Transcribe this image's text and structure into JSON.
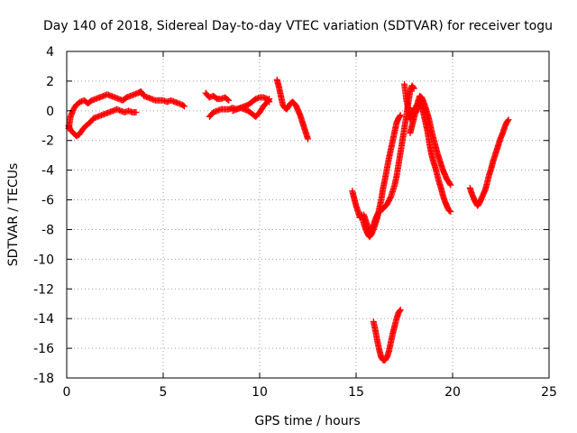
{
  "chart_data": {
    "type": "scatter",
    "title": "Day 140 of 2018, Sidereal Day-to-day VTEC variation (SDTVAR) for receiver togu",
    "xlabel": "GPS time / hours",
    "ylabel": "SDTVAR / TECUs",
    "xlim": [
      0,
      25
    ],
    "ylim": [
      -18,
      4
    ],
    "x_ticks": [
      0,
      5,
      10,
      15,
      20,
      25
    ],
    "y_ticks": [
      -18,
      -16,
      -14,
      -12,
      -10,
      -8,
      -6,
      -4,
      -2,
      0,
      2,
      4
    ],
    "grid": true,
    "marker": "+",
    "color": "#ff0000",
    "series": [
      {
        "segments": [
          [
            [
              0.1,
              -1.0
            ],
            [
              0.2,
              -1.3
            ],
            [
              0.35,
              -1.5
            ],
            [
              0.5,
              -1.7
            ],
            [
              0.65,
              -1.6
            ],
            [
              0.8,
              -1.3
            ],
            [
              1.0,
              -1.0
            ],
            [
              1.2,
              -0.8
            ],
            [
              1.4,
              -0.5
            ],
            [
              1.6,
              -0.4
            ],
            [
              1.8,
              -0.3
            ],
            [
              2.0,
              -0.2
            ],
            [
              2.2,
              -0.1
            ],
            [
              2.4,
              0.0
            ],
            [
              2.6,
              0.1
            ],
            [
              2.8,
              0.0
            ],
            [
              3.0,
              -0.1
            ],
            [
              3.2,
              0.0
            ],
            [
              3.4,
              -0.1
            ],
            [
              3.6,
              -0.1
            ]
          ],
          [
            [
              0.1,
              -1.2
            ],
            [
              0.2,
              -0.4
            ],
            [
              0.35,
              0.1
            ],
            [
              0.5,
              0.4
            ],
            [
              0.7,
              0.6
            ],
            [
              0.9,
              0.7
            ],
            [
              1.1,
              0.5
            ],
            [
              1.3,
              0.7
            ],
            [
              1.5,
              0.8
            ],
            [
              1.7,
              0.9
            ],
            [
              1.9,
              1.0
            ],
            [
              2.1,
              1.1
            ],
            [
              2.3,
              1.0
            ],
            [
              2.5,
              0.9
            ],
            [
              2.7,
              0.8
            ],
            [
              2.9,
              0.7
            ],
            [
              3.1,
              0.9
            ],
            [
              3.3,
              1.0
            ],
            [
              3.5,
              1.1
            ],
            [
              3.7,
              1.2
            ],
            [
              3.85,
              1.3
            ],
            [
              4.0,
              1.0
            ],
            [
              4.2,
              0.9
            ],
            [
              4.4,
              0.8
            ],
            [
              4.6,
              0.7
            ],
            [
              4.8,
              0.7
            ],
            [
              5.0,
              0.7
            ],
            [
              5.2,
              0.6
            ],
            [
              5.4,
              0.7
            ],
            [
              5.6,
              0.6
            ],
            [
              5.8,
              0.5
            ],
            [
              6.0,
              0.4
            ],
            [
              6.1,
              0.3
            ]
          ],
          [
            [
              7.2,
              1.2
            ],
            [
              7.4,
              0.9
            ],
            [
              7.6,
              1.0
            ],
            [
              7.8,
              0.8
            ],
            [
              8.0,
              0.8
            ],
            [
              8.2,
              0.9
            ],
            [
              8.4,
              0.7
            ]
          ],
          [
            [
              7.4,
              -0.4
            ],
            [
              7.6,
              -0.1
            ],
            [
              7.8,
              0.0
            ],
            [
              8.0,
              0.1
            ],
            [
              8.2,
              0.1
            ],
            [
              8.4,
              0.1
            ],
            [
              8.6,
              0.2
            ],
            [
              8.8,
              0.1
            ],
            [
              9.0,
              0.2
            ],
            [
              9.2,
              0.3
            ],
            [
              9.4,
              0.4
            ],
            [
              9.6,
              0.6
            ],
            [
              9.8,
              0.8
            ],
            [
              10.0,
              0.9
            ],
            [
              10.2,
              0.9
            ],
            [
              10.4,
              0.8
            ],
            [
              10.5,
              0.6
            ]
          ],
          [
            [
              8.6,
              0.0
            ],
            [
              8.8,
              0.1
            ],
            [
              9.0,
              0.2
            ],
            [
              9.2,
              0.1
            ],
            [
              9.4,
              0.0
            ],
            [
              9.6,
              -0.2
            ],
            [
              9.8,
              -0.4
            ],
            [
              10.0,
              -0.1
            ],
            [
              10.2,
              0.3
            ],
            [
              10.4,
              0.6
            ],
            [
              10.5,
              0.8
            ]
          ],
          [
            [
              10.9,
              2.1
            ],
            [
              11.0,
              1.6
            ],
            [
              11.1,
              1.0
            ],
            [
              11.2,
              0.4
            ],
            [
              11.3,
              0.2
            ],
            [
              11.4,
              0.1
            ],
            [
              11.5,
              0.3
            ],
            [
              11.6,
              0.5
            ],
            [
              11.7,
              0.6
            ],
            [
              11.8,
              0.5
            ],
            [
              11.9,
              0.3
            ],
            [
              12.0,
              0.0
            ],
            [
              12.1,
              -0.3
            ],
            [
              12.2,
              -0.7
            ],
            [
              12.3,
              -1.1
            ],
            [
              12.4,
              -1.5
            ],
            [
              12.5,
              -1.9
            ]
          ],
          [
            [
              14.8,
              -5.4
            ],
            [
              14.9,
              -5.9
            ],
            [
              15.0,
              -6.4
            ],
            [
              15.1,
              -6.8
            ],
            [
              15.2,
              -7.2
            ],
            [
              15.3,
              -7.0
            ],
            [
              15.4,
              -7.6
            ],
            [
              15.5,
              -8.0
            ],
            [
              15.6,
              -8.3
            ],
            [
              15.7,
              -8.5
            ],
            [
              15.8,
              -8.3
            ],
            [
              15.9,
              -8.0
            ],
            [
              16.0,
              -7.6
            ],
            [
              16.1,
              -7.2
            ],
            [
              16.2,
              -6.6
            ],
            [
              16.3,
              -6.0
            ],
            [
              16.4,
              -5.2
            ],
            [
              16.5,
              -4.6
            ],
            [
              16.6,
              -3.9
            ],
            [
              16.7,
              -3.2
            ],
            [
              16.8,
              -2.6
            ],
            [
              16.9,
              -2.0
            ],
            [
              17.0,
              -1.4
            ],
            [
              17.1,
              -0.8
            ],
            [
              17.2,
              -0.5
            ],
            [
              17.3,
              -0.3
            ]
          ],
          [
            [
              15.4,
              -7.0
            ],
            [
              15.5,
              -7.4
            ],
            [
              15.6,
              -7.8
            ],
            [
              15.7,
              -8.2
            ],
            [
              15.8,
              -8.0
            ],
            [
              15.9,
              -7.7
            ],
            [
              16.0,
              -7.3
            ],
            [
              16.1,
              -7.0
            ],
            [
              16.2,
              -6.8
            ],
            [
              16.4,
              -6.6
            ],
            [
              16.6,
              -6.3
            ],
            [
              16.8,
              -5.8
            ],
            [
              17.0,
              -5.0
            ],
            [
              17.1,
              -4.4
            ],
            [
              17.2,
              -3.6
            ],
            [
              17.3,
              -2.8
            ],
            [
              17.4,
              -2.0
            ],
            [
              17.5,
              -1.2
            ],
            [
              17.6,
              -0.4
            ],
            [
              17.7,
              0.5
            ],
            [
              17.8,
              1.3
            ],
            [
              17.9,
              1.7
            ],
            [
              18.0,
              1.5
            ]
          ],
          [
            [
              17.5,
              1.8
            ],
            [
              17.6,
              0.8
            ],
            [
              17.7,
              0.1
            ],
            [
              17.8,
              -0.6
            ],
            [
              17.9,
              -0.3
            ],
            [
              18.0,
              0.2
            ],
            [
              18.1,
              -0.1
            ],
            [
              18.2,
              0.4
            ],
            [
              18.3,
              0.6
            ],
            [
              18.4,
              0.3
            ],
            [
              18.5,
              -0.2
            ],
            [
              18.6,
              -0.8
            ],
            [
              18.7,
              -1.4
            ],
            [
              18.8,
              -2.2
            ],
            [
              18.9,
              -2.9
            ],
            [
              19.0,
              -3.4
            ],
            [
              19.1,
              -3.8
            ],
            [
              19.2,
              -4.3
            ],
            [
              19.3,
              -4.8
            ],
            [
              19.4,
              -5.2
            ],
            [
              19.5,
              -5.7
            ],
            [
              19.6,
              -6.1
            ],
            [
              19.7,
              -6.4
            ],
            [
              19.8,
              -6.7
            ],
            [
              19.9,
              -6.8
            ]
          ],
          [
            [
              17.8,
              -1.5
            ],
            [
              17.9,
              -1.0
            ],
            [
              18.0,
              -0.5
            ],
            [
              18.1,
              0.0
            ],
            [
              18.2,
              0.6
            ],
            [
              18.3,
              1.0
            ],
            [
              18.4,
              0.9
            ],
            [
              18.5,
              0.6
            ],
            [
              18.6,
              0.2
            ],
            [
              18.7,
              -0.2
            ],
            [
              18.8,
              -0.7
            ],
            [
              18.9,
              -1.3
            ],
            [
              19.0,
              -1.8
            ],
            [
              19.1,
              -2.3
            ],
            [
              19.2,
              -2.8
            ],
            [
              19.3,
              -3.2
            ],
            [
              19.4,
              -3.6
            ],
            [
              19.5,
              -4.0
            ],
            [
              19.6,
              -4.3
            ],
            [
              19.7,
              -4.6
            ],
            [
              19.8,
              -4.8
            ],
            [
              19.9,
              -5.0
            ]
          ],
          [
            [
              15.9,
              -14.2
            ],
            [
              16.0,
              -14.8
            ],
            [
              16.1,
              -15.5
            ],
            [
              16.2,
              -16.1
            ],
            [
              16.3,
              -16.6
            ],
            [
              16.4,
              -16.8
            ],
            [
              16.5,
              -16.8
            ],
            [
              16.6,
              -16.6
            ],
            [
              16.7,
              -16.2
            ],
            [
              16.8,
              -15.6
            ],
            [
              16.9,
              -15.0
            ],
            [
              17.0,
              -14.5
            ],
            [
              17.1,
              -14.0
            ],
            [
              17.2,
              -13.6
            ],
            [
              17.3,
              -13.4
            ]
          ],
          [
            [
              20.9,
              -5.2
            ],
            [
              21.0,
              -5.6
            ],
            [
              21.1,
              -5.9
            ],
            [
              21.2,
              -6.2
            ],
            [
              21.3,
              -6.4
            ],
            [
              21.4,
              -6.2
            ],
            [
              21.5,
              -5.9
            ],
            [
              21.6,
              -5.6
            ],
            [
              21.7,
              -5.3
            ],
            [
              21.8,
              -4.8
            ],
            [
              21.9,
              -4.3
            ],
            [
              22.0,
              -3.9
            ],
            [
              22.1,
              -3.4
            ],
            [
              22.2,
              -3.0
            ],
            [
              22.3,
              -2.6
            ],
            [
              22.4,
              -2.2
            ],
            [
              22.5,
              -1.8
            ],
            [
              22.6,
              -1.5
            ],
            [
              22.7,
              -1.1
            ],
            [
              22.8,
              -0.8
            ],
            [
              22.9,
              -0.6
            ]
          ]
        ]
      }
    ]
  }
}
